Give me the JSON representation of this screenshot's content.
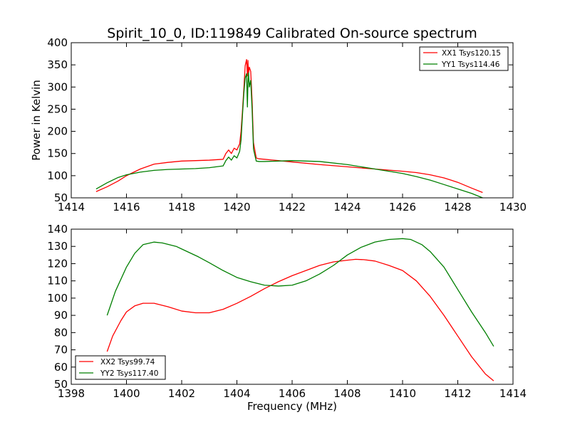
{
  "figure_title": "Spirit_10_0, ID:119849 Calibrated On-source spectrum",
  "colors": {
    "red": "#ff0000",
    "green": "#007f00",
    "axis": "#000000",
    "background": "#ffffff"
  },
  "chart_data": [
    {
      "type": "line",
      "title": "Spirit_10_0, ID:119849 Calibrated On-source spectrum",
      "xlabel": "",
      "ylabel": "Power in Kelvin",
      "xlim": [
        1414,
        1430
      ],
      "ylim": [
        50,
        400
      ],
      "xticks": [
        1414,
        1416,
        1418,
        1420,
        1422,
        1424,
        1426,
        1428,
        1430
      ],
      "yticks": [
        50,
        100,
        150,
        200,
        250,
        300,
        350,
        400
      ],
      "grid": false,
      "legend_position": "top-right",
      "series": [
        {
          "name": "XX1 Tsys120.15",
          "color": "#ff0000",
          "x": [
            1414.9,
            1415.3,
            1415.7,
            1416.0,
            1416.5,
            1417.0,
            1417.5,
            1418.0,
            1418.5,
            1419.0,
            1419.5,
            1419.6,
            1419.7,
            1419.8,
            1419.9,
            1420.0,
            1420.1,
            1420.15,
            1420.2,
            1420.25,
            1420.3,
            1420.35,
            1420.38,
            1420.4,
            1420.42,
            1420.45,
            1420.5,
            1420.55,
            1420.6,
            1420.7,
            1420.8,
            1421.0,
            1421.5,
            1422.0,
            1423.0,
            1424.0,
            1425.0,
            1426.0,
            1426.5,
            1427.0,
            1427.5,
            1428.0,
            1428.5,
            1428.9
          ],
          "y": [
            64,
            75,
            88,
            100,
            115,
            126,
            130,
            133,
            134,
            135,
            137,
            150,
            158,
            150,
            162,
            158,
            172,
            200,
            245,
            295,
            348,
            362,
            325,
            360,
            330,
            345,
            335,
            270,
            175,
            140,
            138,
            137,
            134,
            131,
            125,
            120,
            115,
            110,
            107,
            102,
            95,
            85,
            72,
            62
          ]
        },
        {
          "name": "YY1 Tsys114.46",
          "color": "#007f00",
          "x": [
            1414.9,
            1415.3,
            1415.7,
            1416.0,
            1416.5,
            1417.0,
            1417.5,
            1418.0,
            1418.5,
            1419.0,
            1419.5,
            1419.6,
            1419.7,
            1419.8,
            1419.9,
            1420.0,
            1420.1,
            1420.15,
            1420.2,
            1420.25,
            1420.3,
            1420.35,
            1420.38,
            1420.4,
            1420.42,
            1420.45,
            1420.5,
            1420.55,
            1420.6,
            1420.7,
            1420.8,
            1421.0,
            1421.5,
            1422.0,
            1423.0,
            1424.0,
            1425.0,
            1426.0,
            1426.5,
            1427.0,
            1427.5,
            1428.0,
            1428.5,
            1428.9
          ],
          "y": [
            70,
            84,
            96,
            102,
            108,
            112,
            114,
            115,
            116,
            118,
            122,
            134,
            142,
            135,
            145,
            140,
            155,
            180,
            235,
            285,
            320,
            330,
            255,
            310,
            332,
            300,
            315,
            250,
            160,
            133,
            132,
            132,
            133,
            134,
            132,
            125,
            115,
            105,
            98,
            90,
            80,
            70,
            60,
            50
          ]
        }
      ]
    },
    {
      "type": "line",
      "title": "",
      "xlabel": "Frequency (MHz)",
      "ylabel": "",
      "xlim": [
        1398,
        1414
      ],
      "ylim": [
        50,
        140
      ],
      "xticks": [
        1398,
        1400,
        1402,
        1404,
        1406,
        1408,
        1410,
        1412,
        1414
      ],
      "yticks": [
        50,
        60,
        70,
        80,
        90,
        100,
        110,
        120,
        130,
        140
      ],
      "grid": false,
      "legend_position": "bottom-left",
      "series": [
        {
          "name": "XX2 Tsys99.74",
          "color": "#ff0000",
          "x": [
            1399.3,
            1399.5,
            1399.8,
            1400.0,
            1400.3,
            1400.6,
            1401.0,
            1401.5,
            1402.0,
            1402.5,
            1403.0,
            1403.5,
            1404.0,
            1404.5,
            1405.0,
            1405.5,
            1406.0,
            1406.5,
            1407.0,
            1407.5,
            1408.0,
            1408.3,
            1408.6,
            1409.0,
            1409.5,
            1410.0,
            1410.5,
            1411.0,
            1411.5,
            1412.0,
            1412.5,
            1413.0,
            1413.3
          ],
          "y": [
            69,
            78,
            87,
            92,
            95.5,
            97,
            97,
            95,
            92.5,
            91.5,
            91.5,
            93.5,
            97,
            101,
            105.5,
            109.5,
            113,
            116,
            119,
            121,
            122,
            122.5,
            122.3,
            121.5,
            119,
            116,
            110,
            101,
            90,
            78,
            66,
            56,
            52
          ]
        },
        {
          "name": "YY2 Tsys117.40",
          "color": "#007f00",
          "x": [
            1399.3,
            1399.6,
            1400.0,
            1400.3,
            1400.6,
            1401.0,
            1401.3,
            1401.8,
            1402.2,
            1402.6,
            1403.0,
            1403.5,
            1404.0,
            1404.5,
            1405.0,
            1405.5,
            1406.0,
            1406.5,
            1407.0,
            1407.5,
            1408.0,
            1408.5,
            1409.0,
            1409.5,
            1410.0,
            1410.3,
            1410.7,
            1411.0,
            1411.5,
            1412.0,
            1412.5,
            1413.0,
            1413.3
          ],
          "y": [
            90,
            104,
            118,
            126,
            131,
            132.5,
            132,
            130,
            127,
            124,
            120.5,
            116,
            112,
            109.5,
            107.5,
            107,
            107.5,
            110,
            114,
            119,
            125,
            129.5,
            132.5,
            134,
            134.5,
            134,
            131,
            127,
            118,
            105,
            92,
            80,
            72
          ]
        }
      ]
    }
  ]
}
